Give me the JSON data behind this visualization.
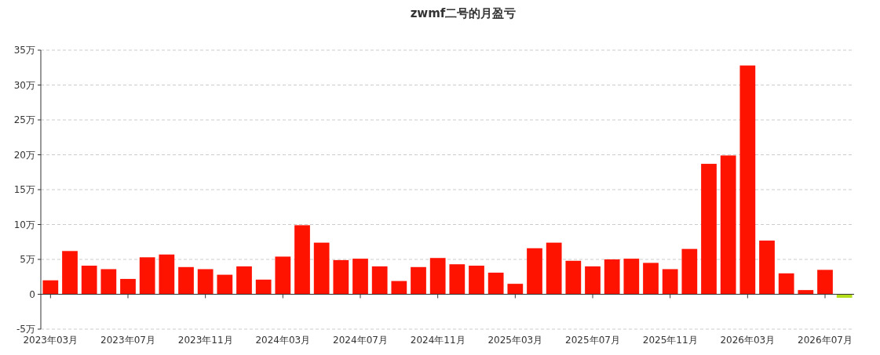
{
  "chart_data": {
    "type": "bar",
    "title": "zwmf二号的月盈亏",
    "categories": [
      "2023年03月",
      null,
      null,
      null,
      "2023年07月",
      null,
      null,
      null,
      "2023年11月",
      null,
      null,
      null,
      "2024年03月",
      null,
      null,
      null,
      "2024年07月",
      null,
      null,
      null,
      "2024年11月",
      null,
      null,
      null,
      "2025年03月",
      null,
      null,
      null,
      "2025年07月",
      null,
      null,
      null,
      "2025年11月",
      null,
      null,
      null,
      "2026年03月",
      null,
      null,
      null,
      "2026年07月",
      null
    ],
    "values": [
      2.0,
      6.2,
      4.1,
      3.6,
      2.2,
      5.3,
      5.7,
      3.9,
      3.6,
      2.8,
      4.0,
      2.1,
      5.4,
      9.9,
      7.4,
      4.9,
      5.1,
      4.0,
      1.9,
      3.9,
      5.2,
      4.3,
      4.1,
      3.1,
      1.5,
      6.6,
      7.4,
      4.8,
      4.0,
      5.0,
      5.1,
      4.5,
      3.6,
      6.5,
      18.7,
      19.9,
      32.8,
      7.7,
      3.0,
      0.6,
      3.5,
      -0.5
    ],
    "colors": [
      "#fe1200",
      "#fe1200",
      "#fe1200",
      "#fe1200",
      "#fe1200",
      "#fe1200",
      "#fe1200",
      "#fe1200",
      "#fe1200",
      "#fe1200",
      "#fe1200",
      "#fe1200",
      "#fe1200",
      "#fe1200",
      "#fe1200",
      "#fe1200",
      "#fe1200",
      "#fe1200",
      "#fe1200",
      "#fe1200",
      "#fe1200",
      "#fe1200",
      "#fe1200",
      "#fe1200",
      "#fe1200",
      "#fe1200",
      "#fe1200",
      "#fe1200",
      "#fe1200",
      "#fe1200",
      "#fe1200",
      "#fe1200",
      "#fe1200",
      "#fe1200",
      "#fe1200",
      "#fe1200",
      "#fe1200",
      "#fe1200",
      "#fe1200",
      "#fe1200",
      "#fe1200",
      "#b2dd1a"
    ],
    "ylim": [
      -5,
      35
    ],
    "yticks": [
      {
        "value": -5,
        "label": "-5万"
      },
      {
        "value": 0,
        "label": "0"
      },
      {
        "value": 5,
        "label": "5万"
      },
      {
        "value": 10,
        "label": "10万"
      },
      {
        "value": 15,
        "label": "15万"
      },
      {
        "value": 20,
        "label": "20万"
      },
      {
        "value": 25,
        "label": "25万"
      },
      {
        "value": 30,
        "label": "30万"
      },
      {
        "value": 35,
        "label": "35万"
      }
    ],
    "grid": "y"
  }
}
